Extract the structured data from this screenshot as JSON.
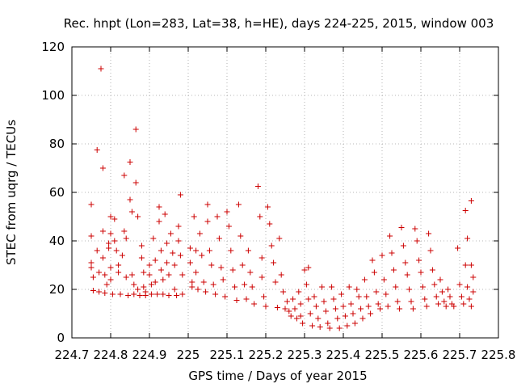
{
  "chart_data": {
    "type": "scatter",
    "title": "Rec. hnpt (Lon=283, Lat=38, h=HE), days 224-225, 2015, window 003",
    "xlabel": "GPS time / Days of year 2015",
    "ylabel": "STEC from uqrg / TECUs",
    "xlim": [
      224.7,
      225.8
    ],
    "ylim": [
      0,
      120
    ],
    "grid": true,
    "marker": "plus",
    "color": "#cc0000",
    "xticks": [
      224.7,
      224.8,
      224.9,
      225.0,
      225.1,
      225.2,
      225.3,
      225.4,
      225.5,
      225.6,
      225.7,
      225.8
    ],
    "xtick_labels": [
      "224.7",
      "224.8",
      "224.9",
      "225",
      "225.1",
      "225.2",
      "225.3",
      "225.4",
      "225.5",
      "225.6",
      "225.7",
      "225.8"
    ],
    "yticks": [
      0,
      20,
      40,
      60,
      80,
      100,
      120
    ],
    "ytick_labels": [
      "0",
      "20",
      "40",
      "60",
      "80",
      "100",
      "120"
    ],
    "series": [
      {
        "points": [
          [
            224.75,
            55
          ],
          [
            224.75,
            42
          ],
          [
            224.75,
            31
          ],
          [
            224.75,
            29
          ],
          [
            224.755,
            25
          ],
          [
            224.755,
            19.5
          ],
          [
            224.765,
            77.5
          ],
          [
            224.765,
            36
          ],
          [
            224.77,
            27
          ],
          [
            224.77,
            19
          ],
          [
            224.775,
            111
          ],
          [
            224.78,
            70
          ],
          [
            224.78,
            44
          ],
          [
            224.78,
            33
          ],
          [
            224.785,
            26
          ],
          [
            224.785,
            18.5
          ],
          [
            224.79,
            22
          ],
          [
            224.795,
            39
          ],
          [
            224.795,
            37
          ],
          [
            224.8,
            50
          ],
          [
            224.8,
            43
          ],
          [
            224.8,
            29
          ],
          [
            224.8,
            24
          ],
          [
            224.805,
            18
          ],
          [
            224.81,
            49
          ],
          [
            224.81,
            40
          ],
          [
            224.815,
            36
          ],
          [
            224.82,
            30
          ],
          [
            224.82,
            27
          ],
          [
            224.825,
            18
          ],
          [
            224.83,
            34
          ],
          [
            224.835,
            67
          ],
          [
            224.835,
            44
          ],
          [
            224.84,
            41
          ],
          [
            224.84,
            25
          ],
          [
            224.845,
            17.5
          ],
          [
            224.85,
            72.5
          ],
          [
            224.85,
            57
          ],
          [
            224.855,
            52
          ],
          [
            224.855,
            26
          ],
          [
            224.86,
            22
          ],
          [
            224.86,
            18
          ],
          [
            224.865,
            86
          ],
          [
            224.865,
            64
          ],
          [
            224.87,
            50
          ],
          [
            224.87,
            20
          ],
          [
            224.875,
            17.5
          ],
          [
            224.88,
            38
          ],
          [
            224.88,
            33
          ],
          [
            224.885,
            27
          ],
          [
            224.885,
            21
          ],
          [
            224.89,
            19
          ],
          [
            224.89,
            17.5
          ],
          [
            224.9,
            30
          ],
          [
            224.9,
            26
          ],
          [
            224.905,
            22
          ],
          [
            224.905,
            18
          ],
          [
            224.91,
            41
          ],
          [
            224.915,
            32
          ],
          [
            224.915,
            23
          ],
          [
            224.92,
            18
          ],
          [
            224.925,
            54
          ],
          [
            224.925,
            48
          ],
          [
            224.93,
            36
          ],
          [
            224.93,
            28
          ],
          [
            224.935,
            24
          ],
          [
            224.935,
            18
          ],
          [
            224.94,
            51
          ],
          [
            224.945,
            39
          ],
          [
            224.945,
            31
          ],
          [
            224.95,
            26
          ],
          [
            224.95,
            17.5
          ],
          [
            224.955,
            43
          ],
          [
            224.96,
            35
          ],
          [
            224.965,
            30
          ],
          [
            224.965,
            20
          ],
          [
            224.97,
            17.5
          ],
          [
            224.975,
            46
          ],
          [
            224.975,
            40
          ],
          [
            224.98,
            59
          ],
          [
            224.98,
            34
          ],
          [
            224.985,
            26
          ],
          [
            224.985,
            18
          ],
          [
            225.005,
            37
          ],
          [
            225.005,
            31
          ],
          [
            225.01,
            23
          ],
          [
            225.01,
            21
          ],
          [
            225.015,
            50
          ],
          [
            225.02,
            36
          ],
          [
            225.02,
            27
          ],
          [
            225.025,
            20
          ],
          [
            225.03,
            43
          ],
          [
            225.035,
            34
          ],
          [
            225.04,
            23
          ],
          [
            225.045,
            19
          ],
          [
            225.05,
            55
          ],
          [
            225.05,
            48
          ],
          [
            225.055,
            36
          ],
          [
            225.06,
            30
          ],
          [
            225.065,
            22
          ],
          [
            225.07,
            18
          ],
          [
            225.075,
            50
          ],
          [
            225.08,
            41
          ],
          [
            225.085,
            29
          ],
          [
            225.09,
            24
          ],
          [
            225.095,
            17
          ],
          [
            225.1,
            52
          ],
          [
            225.105,
            46
          ],
          [
            225.11,
            36
          ],
          [
            225.115,
            28
          ],
          [
            225.12,
            21
          ],
          [
            225.125,
            15.5
          ],
          [
            225.13,
            55
          ],
          [
            225.135,
            42
          ],
          [
            225.14,
            30
          ],
          [
            225.145,
            22
          ],
          [
            225.15,
            16
          ],
          [
            225.155,
            36
          ],
          [
            225.16,
            27
          ],
          [
            225.165,
            21
          ],
          [
            225.17,
            14
          ],
          [
            225.18,
            62.5
          ],
          [
            225.185,
            50
          ],
          [
            225.19,
            33
          ],
          [
            225.19,
            25
          ],
          [
            225.195,
            17
          ],
          [
            225.2,
            13
          ],
          [
            225.205,
            54
          ],
          [
            225.21,
            47
          ],
          [
            225.215,
            38
          ],
          [
            225.22,
            31
          ],
          [
            225.225,
            23
          ],
          [
            225.23,
            12.5
          ],
          [
            225.235,
            41
          ],
          [
            225.24,
            26
          ],
          [
            225.245,
            19
          ],
          [
            225.25,
            12
          ],
          [
            225.255,
            15
          ],
          [
            225.26,
            11
          ],
          [
            225.265,
            9
          ],
          [
            225.27,
            16
          ],
          [
            225.275,
            12
          ],
          [
            225.28,
            8
          ],
          [
            225.285,
            19
          ],
          [
            225.29,
            14
          ],
          [
            225.29,
            9
          ],
          [
            225.295,
            6
          ],
          [
            225.3,
            28
          ],
          [
            225.305,
            22
          ],
          [
            225.31,
            29
          ],
          [
            225.31,
            16
          ],
          [
            225.315,
            10
          ],
          [
            225.32,
            5
          ],
          [
            225.325,
            17
          ],
          [
            225.33,
            13
          ],
          [
            225.335,
            8
          ],
          [
            225.34,
            4.5
          ],
          [
            225.345,
            21
          ],
          [
            225.35,
            15
          ],
          [
            225.355,
            11
          ],
          [
            225.36,
            6
          ],
          [
            225.365,
            4
          ],
          [
            225.37,
            21
          ],
          [
            225.375,
            16
          ],
          [
            225.38,
            12
          ],
          [
            225.385,
            8
          ],
          [
            225.39,
            4
          ],
          [
            225.395,
            18
          ],
          [
            225.4,
            13
          ],
          [
            225.405,
            9
          ],
          [
            225.41,
            5
          ],
          [
            225.415,
            21
          ],
          [
            225.42,
            14
          ],
          [
            225.425,
            10
          ],
          [
            225.43,
            6
          ],
          [
            225.435,
            20
          ],
          [
            225.44,
            17
          ],
          [
            225.445,
            12
          ],
          [
            225.45,
            8
          ],
          [
            225.455,
            24
          ],
          [
            225.46,
            17
          ],
          [
            225.465,
            13
          ],
          [
            225.47,
            10
          ],
          [
            225.475,
            32
          ],
          [
            225.48,
            27
          ],
          [
            225.485,
            19
          ],
          [
            225.49,
            14
          ],
          [
            225.495,
            12
          ],
          [
            225.5,
            34
          ],
          [
            225.505,
            24
          ],
          [
            225.51,
            18
          ],
          [
            225.515,
            13
          ],
          [
            225.52,
            42
          ],
          [
            225.525,
            35
          ],
          [
            225.53,
            28
          ],
          [
            225.535,
            21
          ],
          [
            225.54,
            15
          ],
          [
            225.545,
            12
          ],
          [
            225.55,
            45.5
          ],
          [
            225.555,
            38
          ],
          [
            225.56,
            31
          ],
          [
            225.565,
            26
          ],
          [
            225.57,
            20
          ],
          [
            225.575,
            15
          ],
          [
            225.58,
            12
          ],
          [
            225.585,
            45
          ],
          [
            225.59,
            40
          ],
          [
            225.595,
            32
          ],
          [
            225.6,
            27
          ],
          [
            225.605,
            21
          ],
          [
            225.61,
            16
          ],
          [
            225.615,
            13
          ],
          [
            225.62,
            43
          ],
          [
            225.625,
            36
          ],
          [
            225.63,
            28
          ],
          [
            225.635,
            22
          ],
          [
            225.64,
            17
          ],
          [
            225.645,
            14
          ],
          [
            225.65,
            24
          ],
          [
            225.655,
            19
          ],
          [
            225.66,
            15
          ],
          [
            225.665,
            13
          ],
          [
            225.67,
            20
          ],
          [
            225.675,
            17
          ],
          [
            225.68,
            14
          ],
          [
            225.685,
            13
          ],
          [
            225.695,
            37
          ],
          [
            225.7,
            22
          ],
          [
            225.705,
            17
          ],
          [
            225.71,
            14
          ],
          [
            225.715,
            52.5
          ],
          [
            225.715,
            30
          ],
          [
            225.72,
            41
          ],
          [
            225.72,
            21
          ],
          [
            225.725,
            16
          ],
          [
            225.73,
            13
          ],
          [
            225.73,
            56.5
          ],
          [
            225.73,
            30
          ],
          [
            225.735,
            25
          ],
          [
            225.735,
            19
          ]
        ]
      }
    ]
  }
}
